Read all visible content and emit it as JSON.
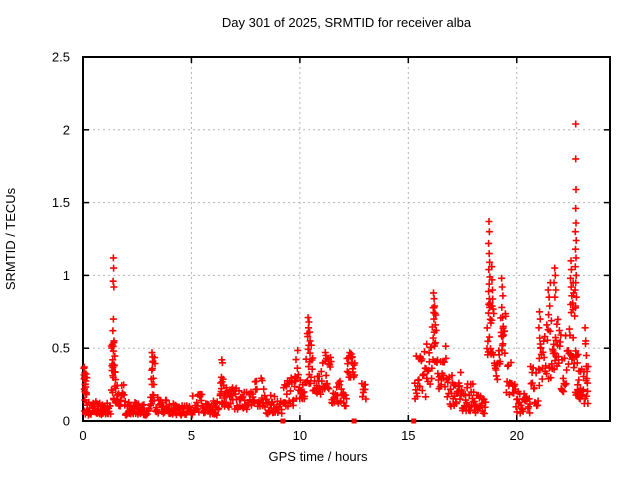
{
  "window": {
    "background": "#ffffff"
  },
  "chart_data": {
    "type": "scatter",
    "title": "Day 301 of 2025, SRMTID for receiver alba",
    "xlabel": "GPS time / hours",
    "ylabel": "SRMTID / TECUs",
    "xlim": [
      0,
      24.3
    ],
    "ylim": [
      0,
      2.5
    ],
    "xticks": [
      0,
      5,
      10,
      15,
      20
    ],
    "yticks": [
      0,
      0.5,
      1,
      1.5,
      2,
      2.5
    ],
    "grid": true,
    "legend_position": "none",
    "marker": {
      "shape": "plus",
      "color": "#ff0000",
      "size": 7
    },
    "grid_color": "#b5b5b5",
    "axis_color": "#000000",
    "axis_zero_markers": {
      "shape": "filled-square",
      "color": "#ff0000",
      "y": 0,
      "x": [
        9.22,
        12.5,
        15.25
      ]
    },
    "series": [
      {
        "name": "SRMTID",
        "peak_points": [
          [
            0.06,
            0.37
          ],
          [
            0.08,
            0.33
          ],
          [
            0.05,
            0.29
          ],
          [
            0.09,
            0.25
          ],
          [
            0.07,
            0.22
          ],
          [
            1.4,
            1.12
          ],
          [
            1.41,
            1.05
          ],
          [
            1.39,
            0.96
          ],
          [
            1.42,
            0.92
          ],
          [
            1.4,
            0.7
          ],
          [
            1.38,
            0.62
          ],
          [
            1.43,
            0.55
          ],
          [
            1.4,
            0.48
          ],
          [
            1.37,
            0.42
          ],
          [
            1.44,
            0.38
          ],
          [
            3.18,
            0.47
          ],
          [
            3.21,
            0.44
          ],
          [
            3.23,
            0.41
          ],
          [
            3.2,
            0.36
          ],
          [
            6.4,
            0.42
          ],
          [
            6.43,
            0.4
          ],
          [
            6.38,
            0.3
          ],
          [
            6.41,
            0.27
          ],
          [
            10.38,
            0.71
          ],
          [
            10.42,
            0.68
          ],
          [
            10.4,
            0.64
          ],
          [
            10.45,
            0.61
          ],
          [
            10.36,
            0.58
          ],
          [
            10.47,
            0.55
          ],
          [
            10.41,
            0.52
          ],
          [
            11.2,
            0.45
          ],
          [
            11.23,
            0.43
          ],
          [
            11.17,
            0.41
          ],
          [
            12.3,
            0.47
          ],
          [
            12.37,
            0.46
          ],
          [
            12.42,
            0.44
          ],
          [
            16.16,
            0.88
          ],
          [
            16.19,
            0.84
          ],
          [
            16.21,
            0.79
          ],
          [
            16.23,
            0.74
          ],
          [
            16.18,
            0.7
          ],
          [
            16.25,
            0.66
          ],
          [
            16.2,
            0.61
          ],
          [
            16.15,
            0.57
          ],
          [
            16.22,
            0.53
          ],
          [
            18.72,
            1.37
          ],
          [
            18.74,
            1.3
          ],
          [
            18.7,
            1.22
          ],
          [
            18.73,
            1.15
          ],
          [
            18.75,
            1.09
          ],
          [
            18.71,
            1.04
          ],
          [
            18.76,
            0.99
          ],
          [
            18.73,
            0.94
          ],
          [
            18.7,
            0.89
          ],
          [
            18.74,
            0.84
          ],
          [
            18.77,
            0.81
          ],
          [
            18.85,
            1.06
          ],
          [
            18.86,
            0.97
          ],
          [
            18.88,
            0.9
          ],
          [
            19.3,
            0.98
          ],
          [
            19.33,
            0.92
          ],
          [
            19.36,
            0.86
          ],
          [
            19.31,
            0.78
          ],
          [
            19.35,
            0.71
          ],
          [
            19.38,
            0.65
          ],
          [
            19.32,
            0.58
          ],
          [
            19.36,
            0.53
          ],
          [
            21.05,
            0.75
          ],
          [
            21.08,
            0.7
          ],
          [
            21.02,
            0.64
          ],
          [
            21.06,
            0.57
          ],
          [
            21.1,
            0.5
          ],
          [
            21.04,
            0.43
          ],
          [
            21.45,
            0.9
          ],
          [
            21.49,
            0.85
          ],
          [
            21.52,
            0.79
          ],
          [
            21.55,
            0.95
          ],
          [
            21.47,
            0.73
          ],
          [
            21.75,
            1.05
          ],
          [
            21.78,
            1.0
          ],
          [
            21.72,
            0.95
          ],
          [
            21.8,
            0.9
          ],
          [
            21.76,
            0.85
          ],
          [
            22.5,
            1.1
          ],
          [
            22.52,
            1.04
          ],
          [
            22.48,
            0.98
          ],
          [
            22.51,
            0.92
          ],
          [
            22.54,
            0.86
          ],
          [
            22.49,
            0.8
          ],
          [
            22.6,
            0.95
          ],
          [
            22.62,
            0.88
          ],
          [
            22.58,
            0.81
          ],
          [
            22.72,
            2.04
          ],
          [
            22.72,
            1.8
          ],
          [
            22.73,
            1.59
          ],
          [
            22.72,
            1.46
          ],
          [
            22.73,
            1.36
          ],
          [
            22.7,
            1.3
          ],
          [
            22.74,
            1.24
          ],
          [
            22.71,
            1.18
          ],
          [
            22.73,
            1.12
          ],
          [
            22.7,
            1.06
          ],
          [
            22.74,
            1.0
          ],
          [
            22.72,
            0.95
          ],
          [
            22.69,
            0.9
          ],
          [
            22.75,
            0.85
          ],
          [
            22.71,
            0.79
          ],
          [
            23.15,
            0.64
          ],
          [
            23.18,
            0.55
          ],
          [
            23.21,
            0.45
          ],
          [
            23.24,
            0.34
          ],
          [
            23.26,
            0.26
          ],
          [
            23.22,
            0.17
          ],
          [
            23.28,
            0.12
          ]
        ],
        "noise_bands": [
          [
            0.03,
            0.18,
            0.18,
            0.37,
            14
          ],
          [
            0.05,
            1.28,
            0.04,
            0.14,
            55
          ],
          [
            1.3,
            1.52,
            0.12,
            0.55,
            26
          ],
          [
            1.52,
            1.95,
            0.1,
            0.26,
            20
          ],
          [
            1.95,
            3.05,
            0.04,
            0.13,
            48
          ],
          [
            3.1,
            3.32,
            0.1,
            0.4,
            15
          ],
          [
            3.32,
            4.1,
            0.05,
            0.16,
            30
          ],
          [
            4.1,
            5.05,
            0.04,
            0.12,
            40
          ],
          [
            5.05,
            5.55,
            0.06,
            0.2,
            18
          ],
          [
            5.55,
            6.28,
            0.04,
            0.13,
            28
          ],
          [
            6.3,
            6.55,
            0.1,
            0.32,
            13
          ],
          [
            6.55,
            7.25,
            0.08,
            0.24,
            26
          ],
          [
            7.25,
            7.85,
            0.08,
            0.2,
            24
          ],
          [
            7.85,
            8.35,
            0.1,
            0.28,
            20
          ],
          [
            8.35,
            9.18,
            0.05,
            0.18,
            32
          ],
          [
            9.22,
            9.75,
            0.1,
            0.3,
            22
          ],
          [
            9.75,
            10.25,
            0.15,
            0.45,
            24
          ],
          [
            10.25,
            10.6,
            0.25,
            0.6,
            18
          ],
          [
            10.6,
            11.05,
            0.18,
            0.35,
            18
          ],
          [
            11.05,
            11.45,
            0.22,
            0.45,
            18
          ],
          [
            11.45,
            11.95,
            0.12,
            0.3,
            20
          ],
          [
            11.95,
            12.15,
            0.1,
            0.22,
            8
          ],
          [
            12.15,
            12.55,
            0.3,
            0.47,
            18
          ],
          [
            12.85,
            13.05,
            0.15,
            0.27,
            8
          ],
          [
            15.28,
            15.8,
            0.15,
            0.45,
            22
          ],
          [
            15.8,
            16.1,
            0.25,
            0.5,
            13
          ],
          [
            16.1,
            16.35,
            0.4,
            0.75,
            13
          ],
          [
            16.35,
            16.75,
            0.22,
            0.5,
            16
          ],
          [
            16.75,
            17.45,
            0.1,
            0.32,
            28
          ],
          [
            17.45,
            18.05,
            0.07,
            0.26,
            26
          ],
          [
            18.05,
            18.58,
            0.05,
            0.18,
            20
          ],
          [
            18.62,
            18.95,
            0.45,
            0.8,
            22
          ],
          [
            18.95,
            19.25,
            0.28,
            0.5,
            12
          ],
          [
            19.25,
            19.5,
            0.45,
            0.8,
            13
          ],
          [
            19.5,
            19.95,
            0.18,
            0.45,
            16
          ],
          [
            19.95,
            20.6,
            0.05,
            0.2,
            26
          ],
          [
            20.6,
            21.05,
            0.1,
            0.38,
            16
          ],
          [
            21.05,
            21.6,
            0.28,
            0.65,
            22
          ],
          [
            21.6,
            21.95,
            0.35,
            0.8,
            18
          ],
          [
            21.95,
            22.35,
            0.2,
            0.6,
            18
          ],
          [
            22.35,
            22.8,
            0.35,
            0.75,
            20
          ],
          [
            22.7,
            22.95,
            0.17,
            0.28,
            9
          ],
          [
            22.8,
            23.1,
            0.15,
            0.45,
            13
          ],
          [
            23.08,
            23.3,
            0.1,
            0.6,
            9
          ]
        ]
      }
    ]
  }
}
